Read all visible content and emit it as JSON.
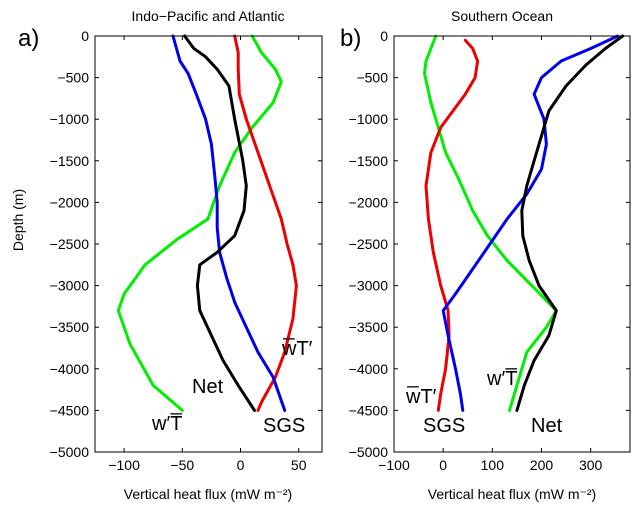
{
  "chart_data": [
    {
      "type": "line",
      "panel_label": "a)",
      "title": "Indo−Pacific and Atlantic",
      "xlabel": "Vertical heat flux  (mW m⁻²)",
      "ylabel": "Depth (m)",
      "xlim": [
        -125,
        70
      ],
      "ylim": [
        -5000,
        0
      ],
      "xticks": [
        -100,
        -50,
        0,
        50
      ],
      "xticklabels": [
        "−100",
        "−50",
        "0",
        "50"
      ],
      "yticks": [
        0,
        -500,
        -1000,
        -1500,
        -2000,
        -2500,
        -3000,
        -3500,
        -4000,
        -4500,
        -5000
      ],
      "yticklabels": [
        "0",
        "−500",
        "−1000",
        "−1500",
        "−2000",
        "−2500",
        "−3000",
        "−3500",
        "−4000",
        "−4500",
        "−5000"
      ],
      "series": [
        {
          "name": "w′T̅",
          "color": "#00ee00",
          "points": [
            [
              10,
              0
            ],
            [
              18,
              -200
            ],
            [
              30,
              -400
            ],
            [
              35,
              -550
            ],
            [
              28,
              -800
            ],
            [
              10,
              -1100
            ],
            [
              -5,
              -1400
            ],
            [
              -18,
              -1800
            ],
            [
              -28,
              -2200
            ],
            [
              -55,
              -2450
            ],
            [
              -82,
              -2750
            ],
            [
              -100,
              -3100
            ],
            [
              -105,
              -3300
            ],
            [
              -95,
              -3700
            ],
            [
              -75,
              -4200
            ],
            [
              -50,
              -4500
            ]
          ]
        },
        {
          "name": "w̅T′",
          "color": "#ee0000",
          "points": [
            [
              -5,
              0
            ],
            [
              -2,
              -200
            ],
            [
              -2,
              -400
            ],
            [
              -1,
              -700
            ],
            [
              5,
              -1000
            ],
            [
              15,
              -1400
            ],
            [
              25,
              -1800
            ],
            [
              35,
              -2200
            ],
            [
              40,
              -2500
            ],
            [
              45,
              -2750
            ],
            [
              48,
              -3000
            ],
            [
              45,
              -3400
            ],
            [
              38,
              -3800
            ],
            [
              30,
              -4100
            ],
            [
              18,
              -4400
            ],
            [
              15,
              -4500
            ]
          ]
        },
        {
          "name": "SGS",
          "color": "#0000ee",
          "points": [
            [
              -58,
              0
            ],
            [
              -55,
              -150
            ],
            [
              -52,
              -300
            ],
            [
              -45,
              -450
            ],
            [
              -38,
              -700
            ],
            [
              -30,
              -1000
            ],
            [
              -25,
              -1300
            ],
            [
              -22,
              -1700
            ],
            [
              -20,
              -2000
            ],
            [
              -20,
              -2300
            ],
            [
              -18,
              -2600
            ],
            [
              -12,
              -2900
            ],
            [
              -5,
              -3200
            ],
            [
              5,
              -3500
            ],
            [
              15,
              -3800
            ],
            [
              28,
              -4100
            ],
            [
              38,
              -4500
            ]
          ]
        },
        {
          "name": "Net",
          "color": "#000000",
          "points": [
            [
              -48,
              0
            ],
            [
              -40,
              -150
            ],
            [
              -30,
              -250
            ],
            [
              -20,
              -400
            ],
            [
              -10,
              -600
            ],
            [
              -5,
              -1000
            ],
            [
              2,
              -1500
            ],
            [
              5,
              -1800
            ],
            [
              3,
              -2100
            ],
            [
              -5,
              -2400
            ],
            [
              -20,
              -2600
            ],
            [
              -35,
              -2750
            ],
            [
              -37,
              -3000
            ],
            [
              -35,
              -3300
            ],
            [
              -25,
              -3600
            ],
            [
              -15,
              -3900
            ],
            [
              -2,
              -4200
            ],
            [
              12,
              -4500
            ]
          ]
        }
      ]
    },
    {
      "type": "line",
      "panel_label": "b)",
      "title": "Southern Ocean",
      "xlabel": "Vertical heat flux  (mW m⁻²)",
      "ylabel": "",
      "xlim": [
        -100,
        380
      ],
      "ylim": [
        -5000,
        0
      ],
      "xticks": [
        -100,
        0,
        100,
        200,
        300
      ],
      "xticklabels": [
        "−100",
        "0",
        "100",
        "200",
        "300"
      ],
      "yticks": [
        0,
        -500,
        -1000,
        -1500,
        -2000,
        -2500,
        -3000,
        -3500,
        -4000,
        -4500,
        -5000
      ],
      "yticklabels": [
        "0",
        "−500",
        "−1000",
        "−1500",
        "−2000",
        "−2500",
        "−3000",
        "−3500",
        "−4000",
        "−4500",
        "−5000"
      ],
      "series": [
        {
          "name": "w′T̅",
          "color": "#00ee00",
          "points": [
            [
              -15,
              0
            ],
            [
              -25,
              -150
            ],
            [
              -35,
              -300
            ],
            [
              -38,
              -450
            ],
            [
              -25,
              -800
            ],
            [
              -10,
              -1100
            ],
            [
              5,
              -1400
            ],
            [
              30,
              -1700
            ],
            [
              60,
              -2100
            ],
            [
              90,
              -2400
            ],
            [
              130,
              -2700
            ],
            [
              180,
              -3000
            ],
            [
              230,
              -3300
            ],
            [
              210,
              -3500
            ],
            [
              170,
              -3800
            ],
            [
              150,
              -4200
            ],
            [
              135,
              -4500
            ]
          ]
        },
        {
          "name": "w̅T′",
          "color": "#ee0000",
          "points": [
            [
              45,
              -50
            ],
            [
              60,
              -150
            ],
            [
              70,
              -300
            ],
            [
              65,
              -500
            ],
            [
              45,
              -700
            ],
            [
              20,
              -900
            ],
            [
              -5,
              -1100
            ],
            [
              -25,
              -1400
            ],
            [
              -35,
              -1800
            ],
            [
              -30,
              -2200
            ],
            [
              -20,
              -2600
            ],
            [
              -5,
              -3000
            ],
            [
              10,
              -3300
            ],
            [
              12,
              -3600
            ],
            [
              5,
              -4000
            ],
            [
              -5,
              -4300
            ],
            [
              -10,
              -4500
            ]
          ]
        },
        {
          "name": "SGS",
          "color": "#0000ee",
          "points": [
            [
              355,
              0
            ],
            [
              300,
              -150
            ],
            [
              240,
              -300
            ],
            [
              200,
              -500
            ],
            [
              185,
              -700
            ],
            [
              205,
              -1000
            ],
            [
              210,
              -1300
            ],
            [
              200,
              -1600
            ],
            [
              170,
              -1900
            ],
            [
              130,
              -2200
            ],
            [
              95,
              -2500
            ],
            [
              60,
              -2800
            ],
            [
              25,
              -3100
            ],
            [
              0,
              -3300
            ],
            [
              10,
              -3600
            ],
            [
              25,
              -4000
            ],
            [
              35,
              -4300
            ],
            [
              40,
              -4500
            ]
          ]
        },
        {
          "name": "Net",
          "color": "#000000",
          "points": [
            [
              365,
              0
            ],
            [
              330,
              -150
            ],
            [
              290,
              -350
            ],
            [
              250,
              -600
            ],
            [
              215,
              -900
            ],
            [
              200,
              -1200
            ],
            [
              185,
              -1500
            ],
            [
              170,
              -1800
            ],
            [
              160,
              -2100
            ],
            [
              162,
              -2400
            ],
            [
              175,
              -2700
            ],
            [
              195,
              -3000
            ],
            [
              230,
              -3300
            ],
            [
              215,
              -3600
            ],
            [
              185,
              -3900
            ],
            [
              165,
              -4200
            ],
            [
              150,
              -4500
            ]
          ]
        }
      ]
    }
  ],
  "annotations": {
    "left": {
      "wpTbar": "w′T̅",
      "net": "Net",
      "wbarTp": "w̅T′",
      "sgs": "SGS"
    },
    "right": {
      "wbarTp": "w̅T′",
      "sgs": "SGS",
      "wpTbar": "w′T̅",
      "net": "Net"
    }
  }
}
